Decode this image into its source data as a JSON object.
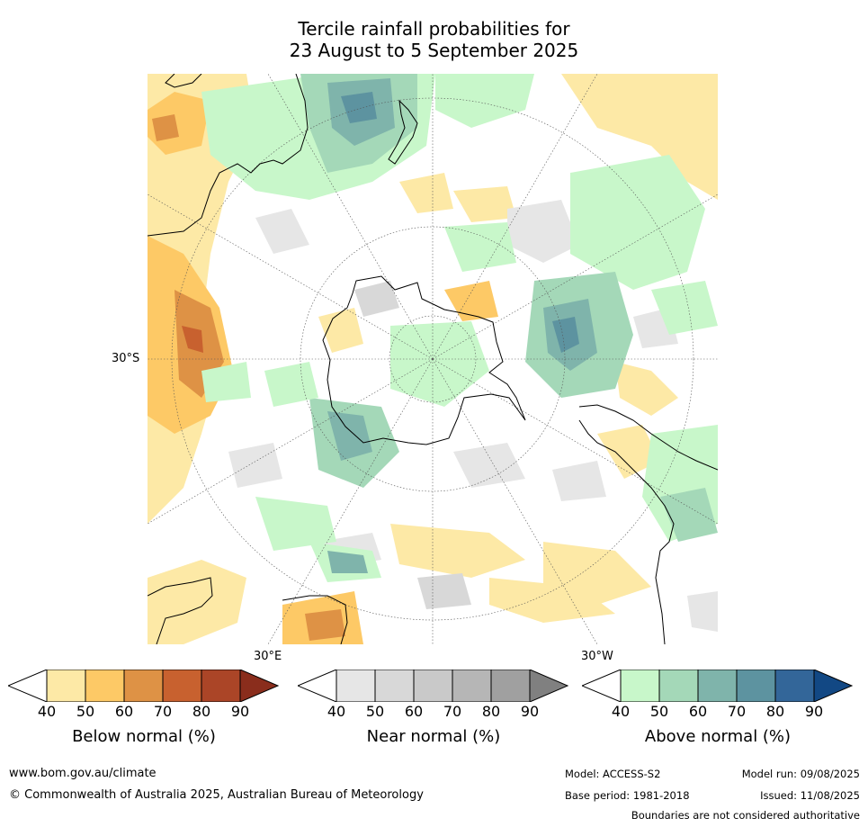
{
  "title": {
    "line1": "Tercile rainfall probabilities for",
    "line2": "23 August to 5 September 2025"
  },
  "map": {
    "lat_label": "30°S",
    "lon_label_left": "30°E",
    "lon_label_right": "30°W"
  },
  "colorbars": [
    {
      "id": "below",
      "title": "Below normal (%)",
      "ticks": [
        "40",
        "50",
        "60",
        "70",
        "80",
        "90"
      ],
      "colors": [
        "#fde9a6",
        "#fdc966",
        "#de9245",
        "#c8612f",
        "#ab4527",
        "#8a2d1c"
      ]
    },
    {
      "id": "near",
      "title": "Near normal (%)",
      "ticks": [
        "40",
        "50",
        "60",
        "70",
        "80",
        "90"
      ],
      "colors": [
        "#e6e6e6",
        "#d8d8d8",
        "#c9c9c9",
        "#b6b6b6",
        "#a0a0a0",
        "#808080"
      ]
    },
    {
      "id": "above",
      "title": "Above normal (%)",
      "ticks": [
        "40",
        "50",
        "60",
        "70",
        "80",
        "90"
      ],
      "colors": [
        "#c8f7ca",
        "#a4d8b8",
        "#7fb4ab",
        "#5d93a0",
        "#336699",
        "#124884"
      ]
    }
  ],
  "footer": {
    "website": "www.bom.gov.au/climate",
    "copyright": "© Commonwealth of Australia 2025, Australian Bureau of Meteorology",
    "model": "Model: ACCESS-S2",
    "base_period": "Base period: 1981-2018",
    "model_run": "Model run: 09/08/2025",
    "issued": "Issued: 11/08/2025",
    "disclaimer": "Boundaries are not considered authoritative"
  }
}
